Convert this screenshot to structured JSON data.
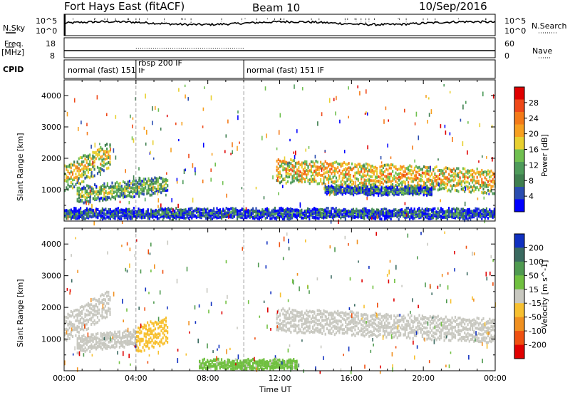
{
  "header": {
    "station": "Fort Hays East (fitACF)",
    "beam": "Beam 10",
    "date": "10/Sep/2016"
  },
  "panels": {
    "nsky_label": "N.Sky",
    "nsearch_label": "N.Search",
    "nsky_ticks": [
      "10^5",
      "10^0"
    ],
    "nsky_right_ticks": [
      "10^5",
      "10^0"
    ],
    "freq_label": "Freq.",
    "freq_unit": "[MHz]",
    "freq_ticks": [
      "18",
      "8"
    ],
    "nave_label": "Nave",
    "nave_ticks": [
      "60",
      "0"
    ],
    "cpid_label": "CPID"
  },
  "cpid": [
    {
      "label": "normal (fast) 151 IF",
      "start_hour": 0
    },
    {
      "label": "rbsp 200 IF",
      "start_hour": 4.0
    },
    {
      "label": "normal (fast) 151 IF",
      "start_hour": 10.0
    }
  ],
  "chart_data": [
    {
      "type": "heatmap",
      "title": "",
      "xlabel": "Time UT",
      "ylabel": "Slant Range [km]",
      "xlim": [
        0,
        24
      ],
      "ylim": [
        0,
        4500
      ],
      "x_ticks": [
        "00:00",
        "04:00",
        "08:00",
        "12:00",
        "16:00",
        "20:00",
        "00:00"
      ],
      "y_ticks": [
        "1000",
        "2000",
        "3000",
        "4000"
      ],
      "colorbar": {
        "label": "Power [dB]",
        "ticks": [
          "4",
          "8",
          "12",
          "16",
          "20",
          "24",
          "28"
        ],
        "range": [
          0,
          30
        ],
        "colors": [
          "#0000ff",
          "#2a4db0",
          "#3f7f4f",
          "#4e9b5a",
          "#70c050",
          "#e8d030",
          "#f7a020",
          "#f47a18",
          "#ef4818",
          "#e00000"
        ]
      },
      "bands": [
        {
          "t0": 0.0,
          "t1": 2.6,
          "r0": 1500,
          "r1": 2350,
          "r_center_start": 1450,
          "r_center_end": 2250,
          "value": 18
        },
        {
          "t0": 0.7,
          "t1": 5.8,
          "r0": 800,
          "r1": 1300,
          "r_center_start": 900,
          "r_center_end": 1250,
          "value": 14
        },
        {
          "t0": 11.8,
          "t1": 24.0,
          "r0": 1100,
          "r1": 1850,
          "r_center_start": 1700,
          "r_center_end": 1350,
          "value": 20
        },
        {
          "t0": 14.5,
          "t1": 20.5,
          "r0": 950,
          "r1": 1150,
          "r_center_start": 1050,
          "r_center_end": 1000,
          "value": 10
        },
        {
          "t0": 0.0,
          "t1": 24.0,
          "r0": 180,
          "r1": 450,
          "r_center_start": 300,
          "r_center_end": 300,
          "value": 8
        }
      ]
    },
    {
      "type": "heatmap",
      "title": "",
      "xlabel": "Time UT",
      "ylabel": "Slant Range [km]",
      "xlim": [
        0,
        24
      ],
      "ylim": [
        0,
        4500
      ],
      "x_ticks": [
        "00:00",
        "04:00",
        "08:00",
        "12:00",
        "16:00",
        "20:00",
        "00:00"
      ],
      "y_ticks": [
        "1000",
        "2000",
        "3000",
        "4000"
      ],
      "colorbar": {
        "label": "Velocity [m s^-1]",
        "ticks": [
          "200",
          "100",
          "50",
          "15",
          "-15",
          "-50",
          "-100",
          "-200"
        ],
        "range": [
          -250,
          250
        ],
        "colors": [
          "#1030c0",
          "#3a6a60",
          "#4f9a50",
          "#70c040",
          "#c8c8c0",
          "#f7c030",
          "#f09020",
          "#ef5010",
          "#e00000"
        ]
      },
      "bands": [
        {
          "t0": 0.0,
          "t1": 2.6,
          "r0": 1500,
          "r1": 2350,
          "r_center_start": 1450,
          "r_center_end": 2250,
          "value": 0
        },
        {
          "t0": 0.7,
          "t1": 4.0,
          "r0": 800,
          "r1": 1300,
          "r_center_start": 900,
          "r_center_end": 1150,
          "value": 0
        },
        {
          "t0": 4.0,
          "t1": 5.8,
          "r0": 900,
          "r1": 1750,
          "r_center_start": 1100,
          "r_center_end": 1400,
          "value": 60
        },
        {
          "t0": 11.8,
          "t1": 24.0,
          "r0": 1100,
          "r1": 1850,
          "r_center_start": 1700,
          "r_center_end": 1350,
          "value": 0
        },
        {
          "t0": 7.5,
          "t1": 13.0,
          "r0": 120,
          "r1": 420,
          "r_center_start": 250,
          "r_center_end": 250,
          "value": -40
        }
      ]
    }
  ]
}
